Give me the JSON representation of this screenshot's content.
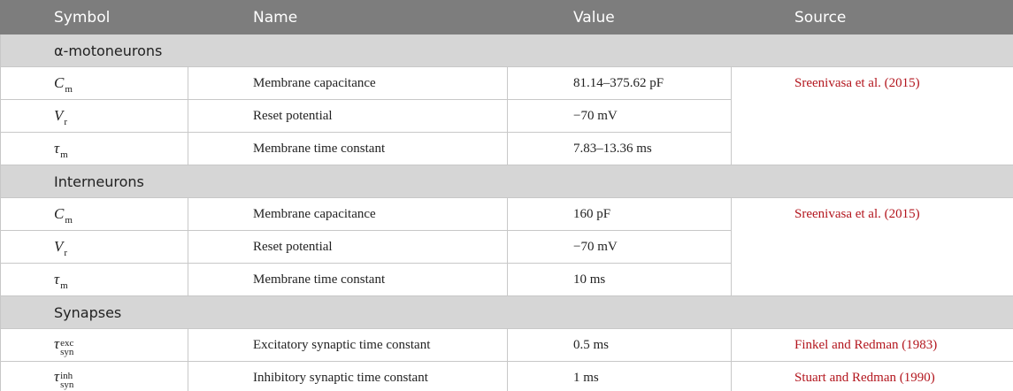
{
  "header": [
    "Symbol",
    "Name",
    "Value",
    "Source"
  ],
  "sections": [
    {
      "title": "α-motoneurons",
      "source": "Sreenivasa et al. (2015)",
      "rows": [
        {
          "symbol": {
            "base": "C",
            "sub": "m"
          },
          "name": "Membrane capacitance",
          "value": "81.14–375.62 pF"
        },
        {
          "symbol": {
            "base": "V",
            "sub": "r"
          },
          "name": "Reset potential",
          "value": "−70 mV"
        },
        {
          "symbol": {
            "base": "τ",
            "sub": "m"
          },
          "name": "Membrane time constant",
          "value": "7.83–13.36 ms"
        }
      ]
    },
    {
      "title": "Interneurons",
      "source": "Sreenivasa et al. (2015)",
      "rows": [
        {
          "symbol": {
            "base": "C",
            "sub": "m"
          },
          "name": "Membrane capacitance",
          "value": "160 pF"
        },
        {
          "symbol": {
            "base": "V",
            "sub": "r"
          },
          "name": "Reset potential",
          "value": "−70 mV"
        },
        {
          "symbol": {
            "base": "τ",
            "sub": "m"
          },
          "name": "Membrane time constant",
          "value": "10 ms"
        }
      ]
    },
    {
      "title": "Synapses",
      "rows": [
        {
          "symbol": {
            "base": "τ",
            "sub": "syn",
            "sup": "exc"
          },
          "name": "Excitatory synaptic time constant",
          "value": "0.5 ms",
          "source": "Finkel and Redman (1983)"
        },
        {
          "symbol": {
            "base": "τ",
            "sub": "syn",
            "sup": "inh"
          },
          "name": "Inhibitory synaptic time constant",
          "value": "1 ms",
          "source": "Stuart and Redman (1990)"
        }
      ]
    }
  ]
}
